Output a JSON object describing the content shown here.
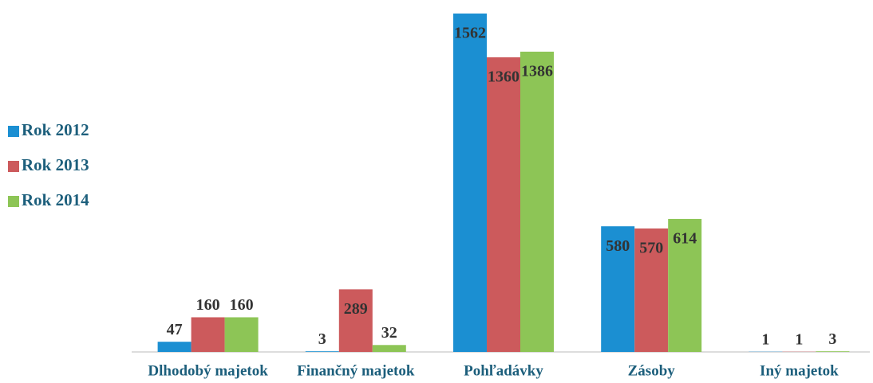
{
  "chart_data": {
    "type": "bar",
    "categories": [
      "Dlhodobý majetok",
      "Finančný majetok",
      "Pohľadávky",
      "Zásoby",
      "Iný majetok"
    ],
    "series": [
      {
        "name": "Rok 2012",
        "color": "#1b8fd2",
        "values": [
          47,
          3,
          1562,
          580,
          1
        ]
      },
      {
        "name": "Rok 2013",
        "color": "#cc5a5c",
        "values": [
          160,
          289,
          1360,
          570,
          1
        ]
      },
      {
        "name": "Rok 2014",
        "color": "#8dc556",
        "values": [
          160,
          32,
          1386,
          614,
          3
        ]
      }
    ],
    "legend": "left"
  }
}
